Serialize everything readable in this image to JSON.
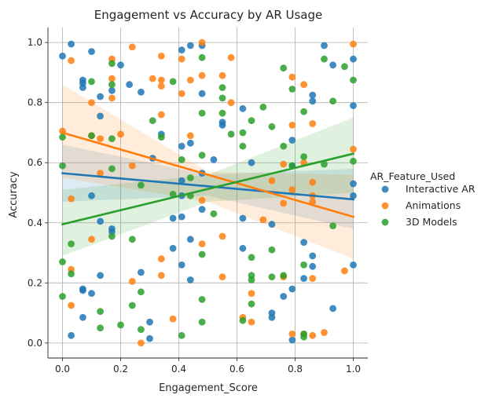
{
  "chart_data": {
    "type": "scatter",
    "title": "Engagement vs Accuracy by AR Usage",
    "xlabel": "Engagement_Score",
    "ylabel": "Accuracy",
    "xlim": [
      -0.05,
      1.05
    ],
    "ylim": [
      -0.05,
      1.05
    ],
    "xticks": [
      "0.0",
      "0.2",
      "0.4",
      "0.6",
      "0.8",
      "1.0"
    ],
    "yticks": [
      "0.0",
      "0.2",
      "0.4",
      "0.6",
      "0.8",
      "1.0"
    ],
    "grid": true,
    "legend": {
      "title": "AR_Feature_Used",
      "placement": "right-outside"
    },
    "series": [
      {
        "name": "Interactive AR",
        "color": "#1f77b4",
        "regression": [
          [
            0,
            0.565
          ],
          [
            1,
            0.478
          ]
        ],
        "ci_band": {
          "x": [
            0,
            0.5,
            1
          ],
          "lower": [
            0.47,
            0.49,
            0.38
          ],
          "upper": [
            0.66,
            0.56,
            0.58
          ]
        },
        "points": [
          [
            0,
            0.955
          ],
          [
            0.03,
            0.995
          ],
          [
            0.07,
            0.875
          ],
          [
            0.07,
            0.865
          ],
          [
            0.07,
            0.85
          ],
          [
            0.1,
            0.97
          ],
          [
            0.13,
            0.82
          ],
          [
            0.13,
            0.755
          ],
          [
            0.17,
            0.84
          ],
          [
            0.2,
            0.925
          ],
          [
            0.23,
            0.86
          ],
          [
            0.27,
            0.835
          ],
          [
            0.41,
            0.975
          ],
          [
            0.44,
            0.99
          ],
          [
            0.48,
            0.99
          ],
          [
            0.48,
            0.83
          ],
          [
            0.55,
            0.735
          ],
          [
            0.55,
            0.725
          ],
          [
            0.62,
            0.78
          ],
          [
            0.79,
            0.675
          ],
          [
            0.86,
            0.825
          ],
          [
            0.86,
            0.805
          ],
          [
            0.9,
            0.99
          ],
          [
            0.93,
            0.925
          ],
          [
            1,
            0.945
          ],
          [
            1,
            0.79
          ],
          [
            0.31,
            0.615
          ],
          [
            0.34,
            0.695
          ],
          [
            0.41,
            0.655
          ],
          [
            0.44,
            0.665
          ],
          [
            0.48,
            0.565
          ],
          [
            0.41,
            0.54
          ],
          [
            0.52,
            0.61
          ],
          [
            0.65,
            0.6
          ],
          [
            0.1,
            0.49
          ],
          [
            0.13,
            0.405
          ],
          [
            0.17,
            0.38
          ],
          [
            0.17,
            0.37
          ],
          [
            0.41,
            0.49
          ],
          [
            0.38,
            0.415
          ],
          [
            0.41,
            0.42
          ],
          [
            0.48,
            0.445
          ],
          [
            0.62,
            0.415
          ],
          [
            0.72,
            0.395
          ],
          [
            0.79,
            0.59
          ],
          [
            0.83,
            0.335
          ],
          [
            0.86,
            0.29
          ],
          [
            0.86,
            0.255
          ],
          [
            1,
            0.53
          ],
          [
            1,
            0.49
          ],
          [
            1,
            0.26
          ],
          [
            0.03,
            0.025
          ],
          [
            0.07,
            0.085
          ],
          [
            0.07,
            0.18
          ],
          [
            0.07,
            0.175
          ],
          [
            0.1,
            0.165
          ],
          [
            0.13,
            0.225
          ],
          [
            0.27,
            0.235
          ],
          [
            0.3,
            0.07
          ],
          [
            0.3,
            0.015
          ],
          [
            0.38,
            0.315
          ],
          [
            0.41,
            0.26
          ],
          [
            0.44,
            0.21
          ],
          [
            0.44,
            0.345
          ],
          [
            0.62,
            0.315
          ],
          [
            0.72,
            0.1
          ],
          [
            0.72,
            0.085
          ],
          [
            0.76,
            0.155
          ],
          [
            0.79,
            0.18
          ],
          [
            0.79,
            0.01
          ],
          [
            0.83,
            0.215
          ],
          [
            0.93,
            0.115
          ]
        ]
      },
      {
        "name": "Animations",
        "color": "#ff7f0e",
        "regression": [
          [
            0,
            0.7
          ],
          [
            1,
            0.42
          ]
        ],
        "ci_band": {
          "x": [
            0,
            0.5,
            1
          ],
          "lower": [
            0.55,
            0.47,
            0.28
          ],
          "upper": [
            0.86,
            0.57,
            0.56
          ]
        },
        "points": [
          [
            0,
            0.705
          ],
          [
            0.03,
            0.94
          ],
          [
            0.03,
            0.48
          ],
          [
            0.03,
            0.245
          ],
          [
            0.03,
            0.125
          ],
          [
            0.1,
            0.8
          ],
          [
            0.1,
            0.69
          ],
          [
            0.1,
            0.345
          ],
          [
            0.13,
            0.68
          ],
          [
            0.13,
            0.565
          ],
          [
            0.17,
            0.945
          ],
          [
            0.17,
            0.88
          ],
          [
            0.17,
            0.815
          ],
          [
            0.2,
            0.695
          ],
          [
            0.24,
            0.985
          ],
          [
            0.24,
            0.59
          ],
          [
            0.24,
            0.205
          ],
          [
            0.27,
            0
          ],
          [
            0.31,
            0.88
          ],
          [
            0.34,
            0.955
          ],
          [
            0.34,
            0.875
          ],
          [
            0.34,
            0.855
          ],
          [
            0.34,
            0.76
          ],
          [
            0.34,
            0.28
          ],
          [
            0.34,
            0.225
          ],
          [
            0.38,
            0.08
          ],
          [
            0.41,
            0.945
          ],
          [
            0.41,
            0.83
          ],
          [
            0.44,
            0.875
          ],
          [
            0.44,
            0.69
          ],
          [
            0.48,
            1
          ],
          [
            0.48,
            0.89
          ],
          [
            0.48,
            0.475
          ],
          [
            0.48,
            0.33
          ],
          [
            0.55,
            0.89
          ],
          [
            0.55,
            0.355
          ],
          [
            0.55,
            0.22
          ],
          [
            0.58,
            0.95
          ],
          [
            0.58,
            0.8
          ],
          [
            0.62,
            0.085
          ],
          [
            0.65,
            0.165
          ],
          [
            0.65,
            0.07
          ],
          [
            0.69,
            0.41
          ],
          [
            0.72,
            0.54
          ],
          [
            0.76,
            0.595
          ],
          [
            0.76,
            0.465
          ],
          [
            0.76,
            0.22
          ],
          [
            0.79,
            0.885
          ],
          [
            0.79,
            0.725
          ],
          [
            0.79,
            0.51
          ],
          [
            0.79,
            0.03
          ],
          [
            0.83,
            0.86
          ],
          [
            0.83,
            0.6
          ],
          [
            0.83,
            0.03
          ],
          [
            0.86,
            0.73
          ],
          [
            0.86,
            0.535
          ],
          [
            0.86,
            0.49
          ],
          [
            0.86,
            0.47
          ],
          [
            0.86,
            0.215
          ],
          [
            0.86,
            0.025
          ],
          [
            0.9,
            0.035
          ],
          [
            0.97,
            0.24
          ],
          [
            1,
            0.995
          ],
          [
            1,
            0.645
          ]
        ]
      },
      {
        "name": "3D Models",
        "color": "#2ca02c",
        "regression": [
          [
            0,
            0.395
          ],
          [
            1,
            0.63
          ]
        ],
        "ci_band": {
          "x": [
            0,
            0.5,
            1
          ],
          "lower": [
            0.29,
            0.47,
            0.5
          ],
          "upper": [
            0.51,
            0.56,
            0.75
          ]
        },
        "points": [
          [
            0,
            0.685
          ],
          [
            0,
            0.59
          ],
          [
            0,
            0.27
          ],
          [
            0,
            0.155
          ],
          [
            0.03,
            0.33
          ],
          [
            0.03,
            0.23
          ],
          [
            0.1,
            0.87
          ],
          [
            0.1,
            0.69
          ],
          [
            0.13,
            0.105
          ],
          [
            0.13,
            0.05
          ],
          [
            0.17,
            0.93
          ],
          [
            0.17,
            0.86
          ],
          [
            0.17,
            0.68
          ],
          [
            0.17,
            0.58
          ],
          [
            0.17,
            0.355
          ],
          [
            0.2,
            0.06
          ],
          [
            0.24,
            0.345
          ],
          [
            0.24,
            0.125
          ],
          [
            0.27,
            0.525
          ],
          [
            0.27,
            0.17
          ],
          [
            0.27,
            0.045
          ],
          [
            0.31,
            0.74
          ],
          [
            0.34,
            0.685
          ],
          [
            0.38,
            0.87
          ],
          [
            0.38,
            0.495
          ],
          [
            0.41,
            0.61
          ],
          [
            0.41,
            0.025
          ],
          [
            0.44,
            0.49
          ],
          [
            0.44,
            0.55
          ],
          [
            0.48,
            0.95
          ],
          [
            0.48,
            0.765
          ],
          [
            0.48,
            0.625
          ],
          [
            0.48,
            0.295
          ],
          [
            0.48,
            0.145
          ],
          [
            0.48,
            0.07
          ],
          [
            0.52,
            0.43
          ],
          [
            0.55,
            0.85
          ],
          [
            0.55,
            0.815
          ],
          [
            0.55,
            0.765
          ],
          [
            0.58,
            0.695
          ],
          [
            0.62,
            0.7
          ],
          [
            0.62,
            0.655
          ],
          [
            0.62,
            0.075
          ],
          [
            0.65,
            0.74
          ],
          [
            0.65,
            0.285
          ],
          [
            0.65,
            0.225
          ],
          [
            0.65,
            0.21
          ],
          [
            0.65,
            0.13
          ],
          [
            0.69,
            0.785
          ],
          [
            0.72,
            0.72
          ],
          [
            0.72,
            0.31
          ],
          [
            0.72,
            0.22
          ],
          [
            0.76,
            0.915
          ],
          [
            0.76,
            0.655
          ],
          [
            0.76,
            0.225
          ],
          [
            0.79,
            0.845
          ],
          [
            0.79,
            0.59
          ],
          [
            0.83,
            0.77
          ],
          [
            0.83,
            0.62
          ],
          [
            0.83,
            0.26
          ],
          [
            0.83,
            0.03
          ],
          [
            0.83,
            0.02
          ],
          [
            0.9,
            0.945
          ],
          [
            0.9,
            0.595
          ],
          [
            0.93,
            0.805
          ],
          [
            0.93,
            0.39
          ],
          [
            0.97,
            0.92
          ],
          [
            1,
            0.875
          ],
          [
            1,
            0.605
          ]
        ]
      }
    ]
  }
}
